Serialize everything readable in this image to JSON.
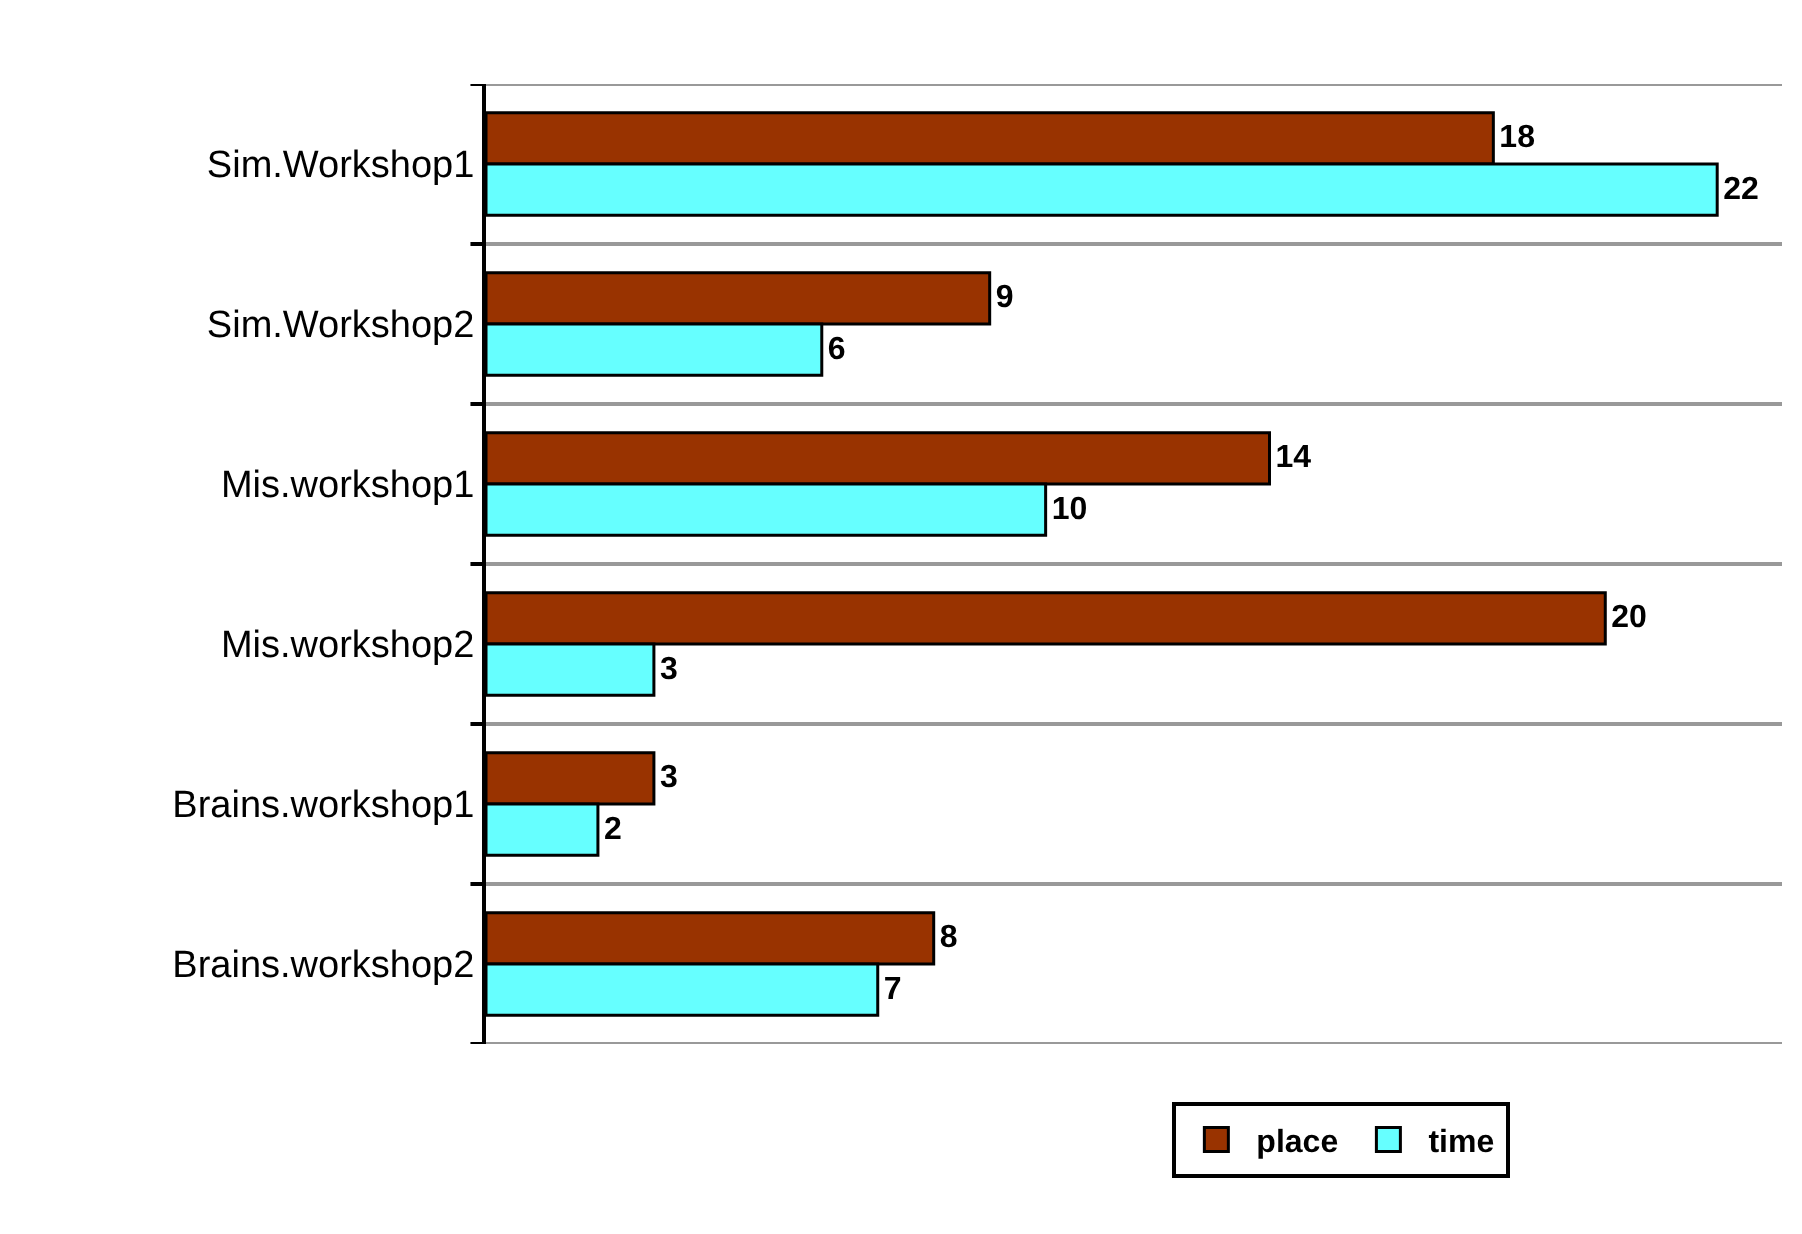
{
  "chart_data": {
    "type": "bar",
    "orientation": "horizontal",
    "categories": [
      "Sim.Workshop1",
      "Sim.Workshop2",
      "Mis.workshop1",
      "Mis.workshop2",
      "Brains.workshop1",
      "Brains.workshop2"
    ],
    "series": [
      {
        "name": "place",
        "color": "#993300",
        "values": [
          18,
          9,
          14,
          20,
          3,
          8
        ]
      },
      {
        "name": "time",
        "color": "#66ffff",
        "values": [
          22,
          6,
          10,
          3,
          2,
          7
        ]
      }
    ],
    "data_labels": true,
    "grid": "y",
    "legend": "bottom",
    "tick_labels": "y"
  }
}
